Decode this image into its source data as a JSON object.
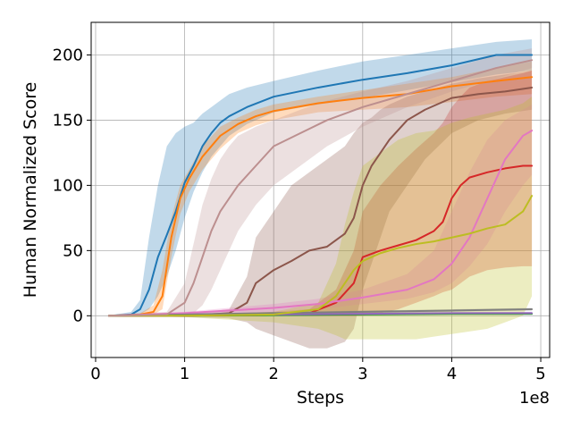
{
  "chart_data": {
    "type": "line",
    "xlabel": "Steps",
    "ylabel": "Human Normalized Score",
    "x_offset_label": "1e8",
    "xlim": [
      -0.05,
      5.1
    ],
    "ylim": [
      -32,
      225
    ],
    "x_ticks": [
      0,
      1,
      2,
      3,
      4,
      5
    ],
    "x_tick_labels": [
      "0",
      "1",
      "2",
      "3",
      "4",
      "5"
    ],
    "y_ticks": [
      0,
      50,
      100,
      150,
      200
    ],
    "y_tick_labels": [
      "0",
      "50",
      "100",
      "150",
      "200"
    ],
    "grid": true,
    "legend": "none",
    "series": [
      {
        "color": "#1f77b4",
        "x": [
          0.15,
          0.4,
          0.5,
          0.6,
          0.7,
          0.8,
          0.9,
          1.0,
          1.1,
          1.2,
          1.3,
          1.4,
          1.5,
          1.7,
          2.0,
          2.5,
          3.0,
          3.5,
          4.0,
          4.5,
          4.9
        ],
        "y": [
          0,
          1,
          5,
          20,
          45,
          62,
          80,
          102,
          115,
          130,
          140,
          148,
          153,
          160,
          168,
          175,
          181,
          186,
          192,
          200,
          200
        ],
        "upper": [
          0,
          3,
          12,
          60,
          100,
          130,
          140,
          145,
          148,
          155,
          160,
          165,
          170,
          175,
          180,
          188,
          195,
          200,
          205,
          210,
          212
        ],
        "lower": [
          0,
          0,
          1,
          5,
          15,
          30,
          50,
          75,
          95,
          110,
          122,
          130,
          138,
          147,
          156,
          162,
          167,
          173,
          179,
          185,
          188
        ]
      },
      {
        "color": "#ff7f0e",
        "x": [
          0.15,
          0.5,
          0.65,
          0.75,
          0.85,
          0.95,
          1.05,
          1.2,
          1.4,
          1.6,
          1.8,
          2.0,
          2.5,
          3.0,
          3.5,
          4.0,
          4.5,
          4.9
        ],
        "y": [
          0,
          1,
          3,
          15,
          60,
          90,
          105,
          122,
          138,
          147,
          153,
          157,
          163,
          167,
          170,
          176,
          180,
          183
        ],
        "upper": [
          0,
          2,
          8,
          35,
          75,
          100,
          112,
          130,
          145,
          152,
          158,
          162,
          168,
          173,
          178,
          183,
          190,
          195
        ],
        "lower": [
          0,
          0,
          1,
          5,
          45,
          78,
          95,
          112,
          128,
          140,
          146,
          150,
          156,
          158,
          160,
          164,
          168,
          170
        ]
      },
      {
        "color": "#2ca02c",
        "x": [
          0.15,
          1.0,
          2.0,
          3.0,
          4.0,
          4.9
        ],
        "y": [
          0,
          0,
          0.5,
          1,
          1.5,
          1.5
        ],
        "upper": [
          0.5,
          0.8,
          1.2,
          1.8,
          2.2,
          2.3
        ],
        "lower": [
          -0.3,
          -0.3,
          0,
          0.3,
          0.8,
          0.9
        ]
      },
      {
        "color": "#d62728",
        "x": [
          0.15,
          1.0,
          2.0,
          2.4,
          2.7,
          2.9,
          3.0,
          3.2,
          3.4,
          3.6,
          3.8,
          3.9,
          4.0,
          4.1,
          4.2,
          4.4,
          4.6,
          4.8,
          4.9
        ],
        "y": [
          0,
          0,
          1,
          2,
          10,
          25,
          45,
          50,
          54,
          58,
          65,
          72,
          90,
          100,
          106,
          110,
          113,
          115,
          115
        ],
        "upper": [
          0.5,
          1,
          3,
          5,
          20,
          50,
          80,
          100,
          115,
          128,
          140,
          148,
          160,
          168,
          175,
          180,
          183,
          186,
          188
        ],
        "lower": [
          0,
          0,
          0,
          0,
          0,
          0,
          0,
          2,
          5,
          10,
          15,
          18,
          20,
          25,
          30,
          35,
          37,
          38,
          38
        ]
      },
      {
        "color": "#9467bd",
        "x": [
          0.15,
          1.0,
          2.0,
          3.0,
          4.0,
          4.9
        ],
        "y": [
          0,
          0.5,
          1,
          1.5,
          2,
          2
        ],
        "upper": [
          0.5,
          1,
          1.8,
          2.4,
          2.8,
          3
        ],
        "lower": [
          -0.3,
          0,
          0.3,
          0.8,
          1.2,
          1.2
        ]
      },
      {
        "color": "#8c564b",
        "x": [
          0.15,
          1.0,
          1.5,
          1.7,
          1.8,
          2.0,
          2.2,
          2.4,
          2.6,
          2.8,
          2.9,
          3.0,
          3.1,
          3.2,
          3.3,
          3.5,
          3.7,
          4.0,
          4.3,
          4.6,
          4.9
        ],
        "y": [
          0,
          0,
          2,
          10,
          25,
          35,
          42,
          50,
          53,
          63,
          75,
          100,
          115,
          125,
          135,
          150,
          158,
          167,
          170,
          172,
          175
        ],
        "upper": [
          0.5,
          1,
          5,
          30,
          60,
          80,
          100,
          110,
          120,
          130,
          140,
          148,
          152,
          158,
          162,
          168,
          172,
          178,
          182,
          185,
          188
        ],
        "lower": [
          0,
          -1,
          -2,
          -5,
          -10,
          -15,
          -20,
          -25,
          -25,
          -20,
          -10,
          20,
          40,
          60,
          80,
          100,
          120,
          140,
          150,
          155,
          158
        ]
      },
      {
        "color": "#e377c2",
        "x": [
          0.15,
          1.0,
          1.5,
          2.0,
          2.5,
          3.0,
          3.5,
          3.8,
          4.0,
          4.2,
          4.4,
          4.6,
          4.8,
          4.9
        ],
        "y": [
          0,
          2,
          4,
          6,
          9,
          14,
          20,
          28,
          40,
          60,
          90,
          120,
          138,
          142
        ],
        "upper": [
          0.5,
          3,
          6,
          9,
          13,
          20,
          32,
          50,
          80,
          110,
          135,
          150,
          158,
          162
        ],
        "lower": [
          0,
          1,
          2,
          3,
          5,
          9,
          13,
          18,
          25,
          38,
          55,
          80,
          100,
          108
        ]
      },
      {
        "color": "#7f7f7f",
        "x": [
          0.15,
          1.0,
          2.0,
          3.0,
          4.0,
          4.9
        ],
        "y": [
          0,
          1,
          2,
          3,
          4,
          5
        ],
        "upper": [
          0.5,
          1.6,
          2.8,
          4,
          5,
          6
        ],
        "lower": [
          -0.3,
          0.4,
          1.2,
          2,
          3,
          4
        ]
      },
      {
        "color": "#bcbd22",
        "x": [
          0.15,
          1.0,
          2.0,
          2.5,
          2.7,
          2.8,
          2.9,
          3.0,
          3.2,
          3.4,
          3.6,
          3.8,
          4.0,
          4.2,
          4.4,
          4.6,
          4.8,
          4.9
        ],
        "y": [
          0,
          0,
          1,
          5,
          15,
          25,
          35,
          42,
          48,
          52,
          55,
          57,
          60,
          63,
          67,
          70,
          80,
          92
        ],
        "upper": [
          0.5,
          1,
          3,
          10,
          40,
          70,
          95,
          115,
          125,
          135,
          140,
          142,
          148,
          152,
          155,
          158,
          163,
          168
        ],
        "lower": [
          0,
          -1,
          -5,
          -10,
          -15,
          -18,
          -18,
          -18,
          -18,
          -18,
          -18,
          -16,
          -14,
          -12,
          -10,
          -5,
          0,
          15
        ]
      },
      {
        "color": "#bc8f8f",
        "x": [
          0.15,
          0.8,
          1.0,
          1.1,
          1.2,
          1.3,
          1.4,
          1.5,
          1.6,
          1.8,
          2.0,
          2.3,
          2.6,
          3.0,
          3.5,
          4.0,
          4.5,
          4.9
        ],
        "y": [
          0,
          1,
          10,
          25,
          45,
          65,
          80,
          90,
          100,
          115,
          130,
          140,
          150,
          160,
          170,
          180,
          190,
          196
        ],
        "upper": [
          0.5,
          3,
          25,
          55,
          85,
          105,
          120,
          130,
          138,
          145,
          150,
          158,
          165,
          172,
          180,
          190,
          200,
          205
        ],
        "lower": [
          0,
          0,
          0,
          2,
          8,
          20,
          35,
          50,
          65,
          85,
          100,
          115,
          130,
          145,
          160,
          172,
          182,
          190
        ]
      }
    ]
  }
}
